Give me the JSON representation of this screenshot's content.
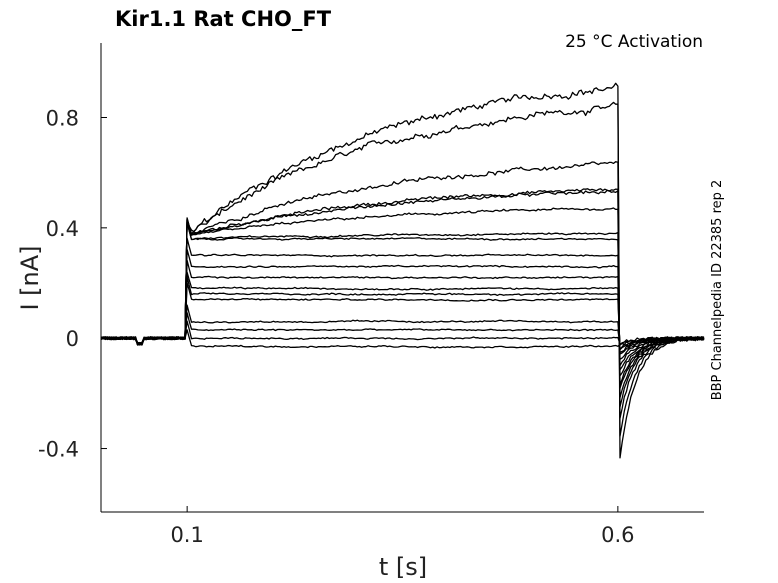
{
  "chart_data": {
    "type": "line",
    "title": "Kir1.1  Rat  CHO_FT",
    "annotation": "25 °C  Activation",
    "side_label": "BBP Channelpedia ID 22385 rep 2",
    "xlabel": "t [s]",
    "ylabel": "I [nA]",
    "xlim": [
      0.0,
      0.7
    ],
    "ylim": [
      -0.63,
      1.07
    ],
    "x_ticks": [
      0.1,
      0.6
    ],
    "x_tick_labels": [
      "0.1",
      "0.6"
    ],
    "y_ticks": [
      0.8,
      0.4,
      0,
      -0.4
    ],
    "y_tick_labels": [
      "0.8",
      "0.4",
      "0",
      "-0.4"
    ],
    "grid": false,
    "protocol": {
      "pre_step_end": 0.1,
      "step_end": 0.6,
      "baseline": 0.0
    },
    "series": [
      {
        "start": 0.37,
        "end": 0.91,
        "tail_peak": -0.5
      },
      {
        "start": 0.37,
        "end": 0.84,
        "tail_peak": -0.41
      },
      {
        "start": 0.37,
        "end": 0.63,
        "tail_peak": -0.33
      },
      {
        "start": 0.37,
        "end": 0.54,
        "tail_peak": -0.28
      },
      {
        "start": 0.37,
        "end": 0.53,
        "tail_peak": -0.25
      },
      {
        "start": 0.37,
        "end": 0.47,
        "tail_peak": -0.21
      },
      {
        "start": 0.36,
        "end": 0.38,
        "tail_peak": -0.19
      },
      {
        "start": 0.36,
        "end": 0.36,
        "tail_peak": -0.16
      },
      {
        "start": 0.3,
        "end": 0.3,
        "tail_peak": -0.13
      },
      {
        "start": 0.26,
        "end": 0.26,
        "tail_peak": -0.11
      },
      {
        "start": 0.22,
        "end": 0.22,
        "tail_peak": -0.09
      },
      {
        "start": 0.18,
        "end": 0.18,
        "tail_peak": -0.07
      },
      {
        "start": 0.16,
        "end": 0.16,
        "tail_peak": -0.06
      },
      {
        "start": 0.14,
        "end": 0.14,
        "tail_peak": -0.05
      },
      {
        "start": 0.06,
        "end": 0.06,
        "tail_peak": -0.04
      },
      {
        "start": 0.03,
        "end": 0.03,
        "tail_peak": -0.03
      },
      {
        "start": 0.0,
        "end": 0.0,
        "tail_peak": -0.02
      },
      {
        "start": -0.03,
        "end": -0.03,
        "tail_peak": -0.02
      }
    ]
  }
}
